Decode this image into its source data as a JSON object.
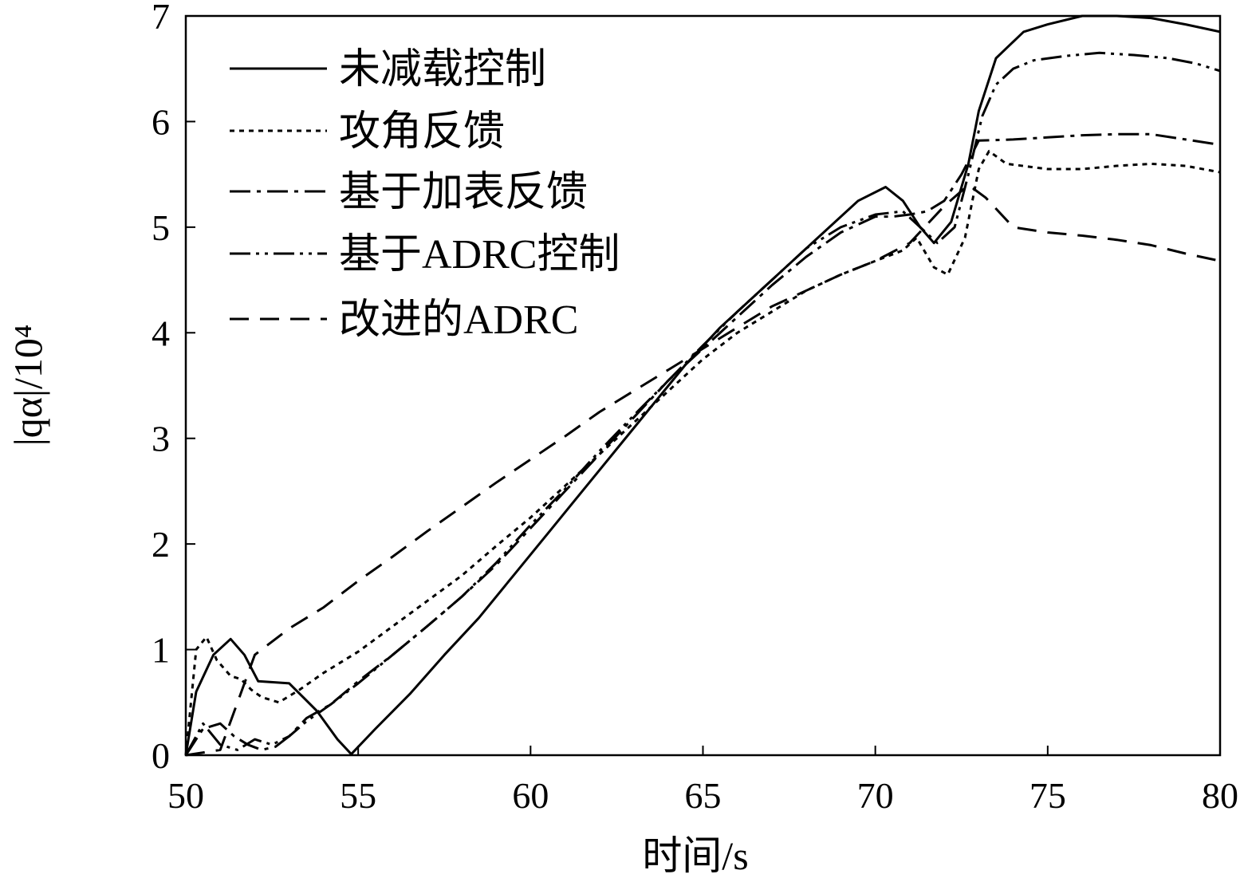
{
  "chart_data": {
    "type": "line",
    "xlabel": "时间/s",
    "ylabel": "|qα|/10⁴",
    "xlim": [
      50,
      80
    ],
    "ylim": [
      0,
      7
    ],
    "xticks": [
      "50",
      "55",
      "60",
      "65",
      "70",
      "75",
      "80"
    ],
    "yticks": [
      "0",
      "1",
      "2",
      "3",
      "4",
      "5",
      "6",
      "7"
    ],
    "grid": false,
    "legend_position": "top-left",
    "series": [
      {
        "name": "未减载控制",
        "style": "solid",
        "points": [
          [
            50,
            0
          ],
          [
            50.3,
            0.6
          ],
          [
            50.8,
            0.95
          ],
          [
            51.3,
            1.1
          ],
          [
            51.7,
            0.95
          ],
          [
            52.1,
            0.7
          ],
          [
            53,
            0.68
          ],
          [
            53.8,
            0.42
          ],
          [
            54.4,
            0.15
          ],
          [
            54.8,
            0.01
          ],
          [
            55.5,
            0.25
          ],
          [
            56.5,
            0.58
          ],
          [
            57.5,
            0.95
          ],
          [
            58.5,
            1.3
          ],
          [
            59.5,
            1.7
          ],
          [
            60.5,
            2.1
          ],
          [
            61.5,
            2.5
          ],
          [
            62.5,
            2.9
          ],
          [
            63.5,
            3.3
          ],
          [
            64.5,
            3.7
          ],
          [
            65.5,
            4.05
          ],
          [
            66.5,
            4.35
          ],
          [
            67.5,
            4.65
          ],
          [
            68.5,
            4.95
          ],
          [
            69.5,
            5.25
          ],
          [
            70.3,
            5.38
          ],
          [
            70.8,
            5.25
          ],
          [
            71.3,
            5.0
          ],
          [
            71.7,
            4.85
          ],
          [
            72.2,
            5.05
          ],
          [
            72.7,
            5.6
          ],
          [
            73.0,
            6.1
          ],
          [
            73.5,
            6.6
          ],
          [
            74.3,
            6.85
          ],
          [
            75,
            6.92
          ],
          [
            76,
            7.0
          ],
          [
            77,
            7.0
          ],
          [
            78,
            6.98
          ],
          [
            79,
            6.92
          ],
          [
            80,
            6.85
          ]
        ]
      },
      {
        "name": "攻角反馈",
        "style": "dotted",
        "points": [
          [
            50,
            0
          ],
          [
            50.3,
            1.0
          ],
          [
            50.6,
            1.12
          ],
          [
            50.9,
            0.9
          ],
          [
            51.3,
            0.75
          ],
          [
            51.6,
            0.72
          ],
          [
            51.9,
            0.62
          ],
          [
            52.2,
            0.55
          ],
          [
            52.7,
            0.5
          ],
          [
            53.3,
            0.62
          ],
          [
            54,
            0.78
          ],
          [
            55,
            0.98
          ],
          [
            56,
            1.22
          ],
          [
            57,
            1.46
          ],
          [
            58,
            1.7
          ],
          [
            59,
            1.98
          ],
          [
            60,
            2.25
          ],
          [
            61,
            2.55
          ],
          [
            62,
            2.85
          ],
          [
            63,
            3.15
          ],
          [
            64,
            3.45
          ],
          [
            65,
            3.75
          ],
          [
            66,
            4.0
          ],
          [
            67,
            4.2
          ],
          [
            68,
            4.4
          ],
          [
            69,
            4.55
          ],
          [
            70,
            4.68
          ],
          [
            70.8,
            4.78
          ],
          [
            71.2,
            4.9
          ],
          [
            71.7,
            4.62
          ],
          [
            72.1,
            4.55
          ],
          [
            72.6,
            4.9
          ],
          [
            73.0,
            5.55
          ],
          [
            73.3,
            5.72
          ],
          [
            73.8,
            5.6
          ],
          [
            75,
            5.55
          ],
          [
            76,
            5.55
          ],
          [
            77,
            5.58
          ],
          [
            78,
            5.6
          ],
          [
            79,
            5.58
          ],
          [
            80,
            5.52
          ]
        ]
      },
      {
        "name": "基于加表反馈",
        "style": "dashdot",
        "points": [
          [
            50,
            0
          ],
          [
            50.5,
            0.25
          ],
          [
            51,
            0.3
          ],
          [
            51.4,
            0.18
          ],
          [
            51.8,
            0.1
          ],
          [
            52.2,
            0.05
          ],
          [
            52.6,
            0.08
          ],
          [
            53,
            0.18
          ],
          [
            53.5,
            0.35
          ],
          [
            54.2,
            0.48
          ],
          [
            55,
            0.7
          ],
          [
            56,
            0.95
          ],
          [
            57,
            1.22
          ],
          [
            58,
            1.5
          ],
          [
            59,
            1.8
          ],
          [
            60,
            2.15
          ],
          [
            61,
            2.5
          ],
          [
            62,
            2.85
          ],
          [
            63,
            3.2
          ],
          [
            64,
            3.55
          ],
          [
            65,
            3.85
          ],
          [
            66,
            4.15
          ],
          [
            67,
            4.45
          ],
          [
            68,
            4.72
          ],
          [
            69,
            4.95
          ],
          [
            70,
            5.1
          ],
          [
            70.5,
            5.1
          ],
          [
            71,
            5.12
          ],
          [
            71.5,
            5.15
          ],
          [
            72,
            5.25
          ],
          [
            72.5,
            5.5
          ],
          [
            73,
            5.82
          ],
          [
            74,
            5.83
          ],
          [
            75,
            5.85
          ],
          [
            76,
            5.87
          ],
          [
            77,
            5.88
          ],
          [
            78,
            5.88
          ],
          [
            79,
            5.83
          ],
          [
            80,
            5.78
          ]
        ]
      },
      {
        "name": "基于ADRC控制",
        "style": "dashdotdot",
        "points": [
          [
            50,
            0
          ],
          [
            50.5,
            0.3
          ],
          [
            51,
            0.1
          ],
          [
            51.5,
            0.05
          ],
          [
            52,
            0.15
          ],
          [
            52.5,
            0.1
          ],
          [
            53,
            0.18
          ],
          [
            53.5,
            0.32
          ],
          [
            54.2,
            0.48
          ],
          [
            55,
            0.68
          ],
          [
            56,
            0.95
          ],
          [
            57,
            1.22
          ],
          [
            58,
            1.5
          ],
          [
            59,
            1.82
          ],
          [
            60,
            2.18
          ],
          [
            61,
            2.52
          ],
          [
            62,
            2.88
          ],
          [
            63,
            3.22
          ],
          [
            64,
            3.55
          ],
          [
            65,
            3.88
          ],
          [
            66,
            4.2
          ],
          [
            67,
            4.5
          ],
          [
            68,
            4.8
          ],
          [
            69,
            5.0
          ],
          [
            70,
            5.12
          ],
          [
            70.8,
            5.15
          ],
          [
            71.3,
            5.0
          ],
          [
            71.8,
            4.85
          ],
          [
            72.3,
            5.0
          ],
          [
            72.7,
            5.5
          ],
          [
            73.1,
            6.05
          ],
          [
            73.5,
            6.35
          ],
          [
            74,
            6.5
          ],
          [
            74.6,
            6.58
          ],
          [
            75.5,
            6.62
          ],
          [
            76.5,
            6.65
          ],
          [
            77.5,
            6.63
          ],
          [
            78.5,
            6.6
          ],
          [
            79.3,
            6.55
          ],
          [
            80,
            6.48
          ]
        ]
      },
      {
        "name": "改进的ADRC",
        "style": "dashed",
        "points": [
          [
            50,
            0
          ],
          [
            51,
            0.05
          ],
          [
            52,
            0.95
          ],
          [
            53,
            1.2
          ],
          [
            54,
            1.4
          ],
          [
            55,
            1.65
          ],
          [
            56,
            1.88
          ],
          [
            57,
            2.12
          ],
          [
            58,
            2.35
          ],
          [
            59,
            2.58
          ],
          [
            60,
            2.8
          ],
          [
            61,
            3.02
          ],
          [
            62,
            3.25
          ],
          [
            63,
            3.45
          ],
          [
            64,
            3.65
          ],
          [
            65,
            3.85
          ],
          [
            66,
            4.05
          ],
          [
            67,
            4.25
          ],
          [
            68,
            4.4
          ],
          [
            69,
            4.55
          ],
          [
            70,
            4.68
          ],
          [
            71,
            4.85
          ],
          [
            72,
            5.2
          ],
          [
            72.7,
            5.4
          ],
          [
            73.2,
            5.28
          ],
          [
            74,
            5.0
          ],
          [
            75,
            4.95
          ],
          [
            76,
            4.92
          ],
          [
            77,
            4.88
          ],
          [
            78,
            4.83
          ],
          [
            79,
            4.75
          ],
          [
            80,
            4.68
          ]
        ]
      }
    ]
  }
}
